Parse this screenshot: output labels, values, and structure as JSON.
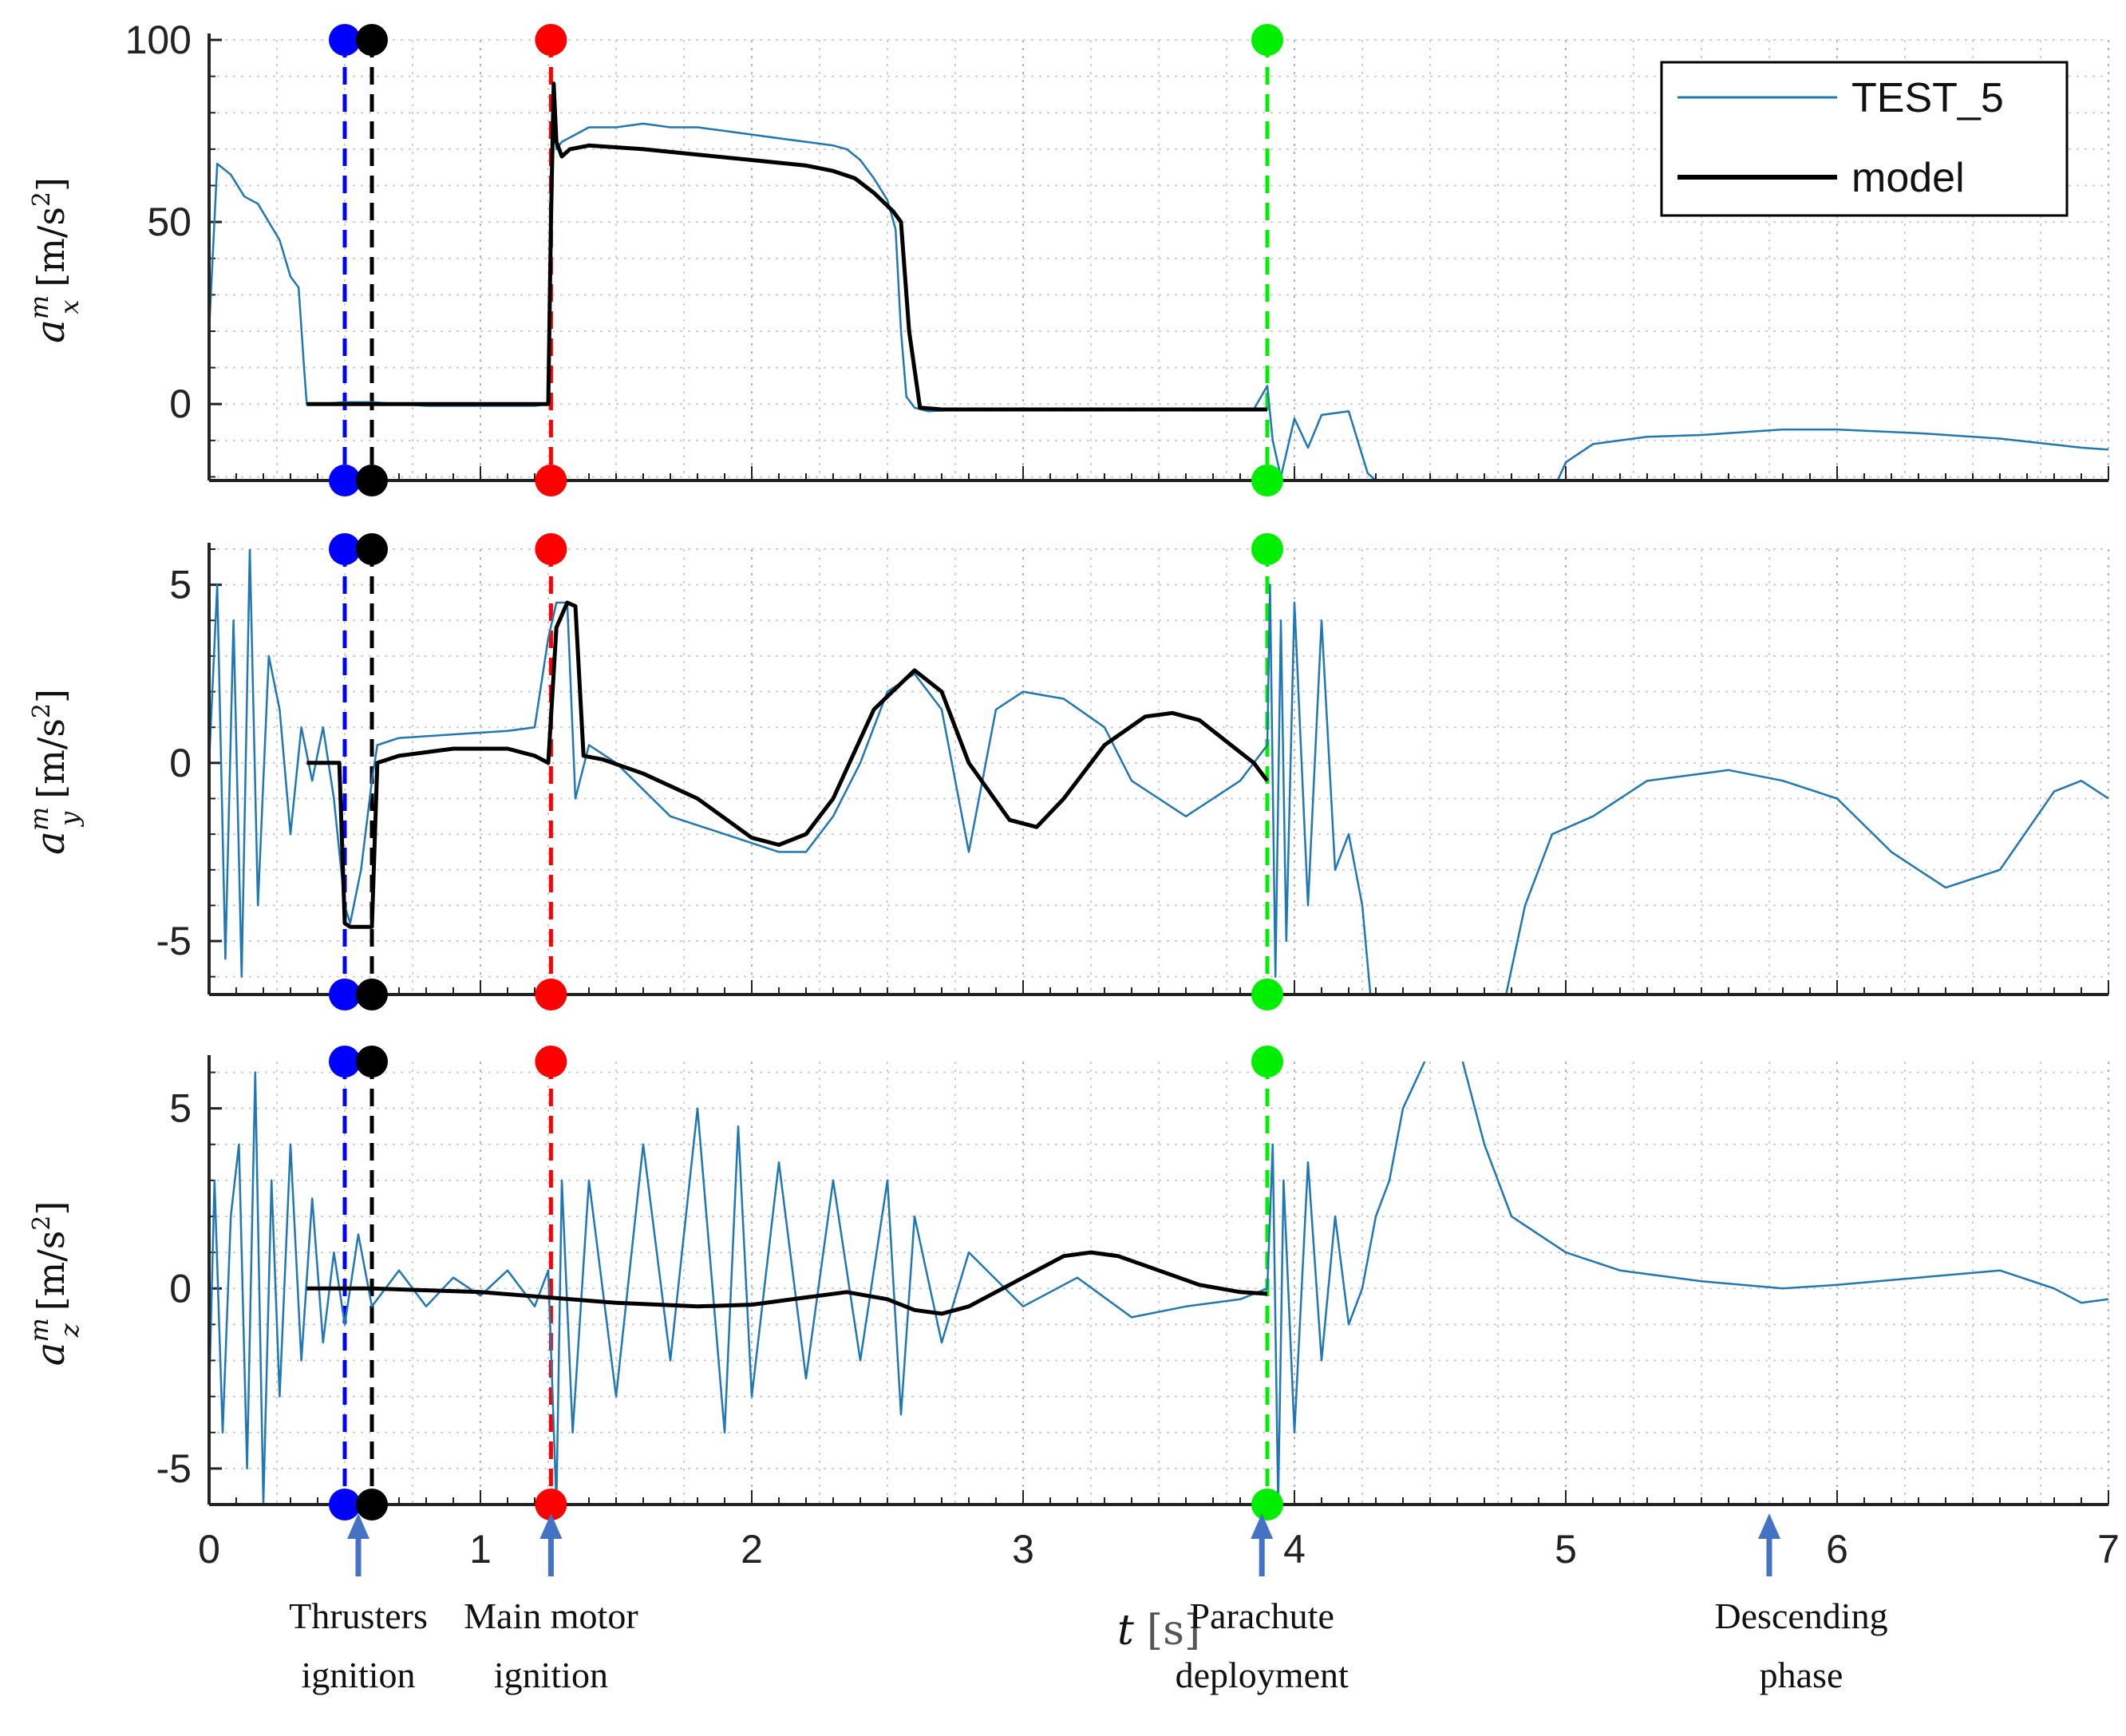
{
  "chart_data": {
    "type": "line",
    "xlim": [
      0,
      7
    ],
    "xticks": [
      0,
      1,
      2,
      3,
      4,
      5,
      6,
      7
    ],
    "xlabel": {
      "symbol": "t",
      "unit": "[s]"
    },
    "colors": {
      "measured": "#1f77b4",
      "model": "#000000",
      "thrusters_first": "#0000ff",
      "thrusters_second": "#000000",
      "main_motor": "#ff0000",
      "parachute": "#00ee00",
      "arrow": "#4472c4"
    },
    "legend": {
      "position": "top-right",
      "entries": [
        "TEST_5",
        "model"
      ]
    },
    "events": [
      {
        "name": "thrusters-1",
        "t": 0.5,
        "color": "#0000ff"
      },
      {
        "name": "thrusters-2",
        "t": 0.6,
        "color": "#000000"
      },
      {
        "name": "main-motor",
        "t": 1.26,
        "color": "#ff0000"
      },
      {
        "name": "parachute",
        "t": 3.9,
        "color": "#00ee00"
      }
    ],
    "annotations": [
      {
        "t": 0.55,
        "lines": [
          "Thrusters",
          "ignition"
        ]
      },
      {
        "t": 1.26,
        "lines": [
          "Main motor",
          "ignition"
        ]
      },
      {
        "t": 3.88,
        "lines": [
          "Parachute",
          "deployment"
        ]
      },
      {
        "t": 5.75,
        "lines": [
          "Descending",
          "phase"
        ]
      }
    ],
    "panels": [
      {
        "id": "ax",
        "ylabel": {
          "symbol": "a",
          "sup": "m",
          "sub": "x",
          "unit": "[m/s",
          "unit_sup": "2",
          "unit_close": "]"
        },
        "ylim": [
          -21,
          100
        ],
        "yticks": [
          0,
          50,
          100
        ],
        "series": [
          {
            "name": "TEST_5",
            "x": [
              0,
              0.03,
              0.08,
              0.13,
              0.18,
              0.22,
              0.26,
              0.3,
              0.33,
              0.35,
              0.36,
              0.4,
              0.5,
              0.6,
              0.8,
              1.0,
              1.2,
              1.25,
              1.26,
              1.27,
              1.28,
              1.3,
              1.35,
              1.4,
              1.5,
              1.6,
              1.7,
              1.8,
              1.9,
              2.0,
              2.1,
              2.2,
              2.3,
              2.35,
              2.4,
              2.45,
              2.5,
              2.53,
              2.55,
              2.57,
              2.6,
              2.65,
              2.8,
              3.2,
              3.6,
              3.85,
              3.9,
              3.92,
              3.95,
              4.0,
              4.05,
              4.1,
              4.2,
              4.27,
              4.3,
              null,
              4.97,
              5.0,
              5.1,
              5.2,
              5.3,
              5.5,
              5.8,
              6.0,
              6.3,
              6.6,
              6.9,
              7.0
            ],
            "y": [
              20,
              66,
              63,
              57,
              55,
              50,
              45,
              35,
              32,
              10,
              0,
              0,
              0.5,
              0.5,
              -0.5,
              -0.5,
              -0.5,
              0,
              40,
              80,
              70,
              72,
              74,
              76,
              76,
              77,
              76,
              76,
              75,
              74,
              73,
              72,
              71,
              70,
              67,
              62,
              56,
              48,
              20,
              2,
              -1,
              -2,
              -1.5,
              -1.5,
              -1.5,
              -1.5,
              5,
              -10,
              -20,
              -4,
              -12,
              -3,
              -2,
              -19,
              -21,
              null,
              -21,
              -16,
              -11,
              -10,
              -9,
              -8.5,
              -7,
              -7,
              -8,
              -9.5,
              -12,
              -12.5
            ]
          },
          {
            "name": "model",
            "x": [
              0.36,
              0.5,
              0.7,
              1.0,
              1.25,
              1.26,
              1.27,
              1.28,
              1.3,
              1.33,
              1.4,
              1.6,
              1.8,
              2.0,
              2.2,
              2.3,
              2.38,
              2.45,
              2.52,
              2.55,
              2.58,
              2.62,
              2.7,
              3.0,
              3.5,
              3.9
            ],
            "y": [
              0,
              0,
              0,
              0,
              0,
              50,
              88,
              72,
              68,
              70,
              71,
              70,
              68.5,
              67,
              65.5,
              64,
              62,
              58,
              53,
              50,
              20,
              -1,
              -1.5,
              -1.5,
              -1.5,
              -1.5
            ]
          }
        ]
      },
      {
        "id": "ay",
        "ylabel": {
          "symbol": "a",
          "sup": "m",
          "sub": "y",
          "unit": "[m/s",
          "unit_sup": "2",
          "unit_close": "]"
        },
        "ylim": [
          -6.5,
          6
        ],
        "yticks": [
          -5,
          0,
          5
        ],
        "series": [
          {
            "name": "TEST_5",
            "x": [
              0,
              0.03,
              0.06,
              0.09,
              0.12,
              0.15,
              0.18,
              0.22,
              0.26,
              0.3,
              0.34,
              0.38,
              0.42,
              0.46,
              0.5,
              0.52,
              0.56,
              0.6,
              0.62,
              0.7,
              0.9,
              1.1,
              1.2,
              1.25,
              1.28,
              1.32,
              1.35,
              1.4,
              1.5,
              1.7,
              1.9,
              2.1,
              2.2,
              2.3,
              2.4,
              2.5,
              2.6,
              2.7,
              2.8,
              2.9,
              3.0,
              3.15,
              3.3,
              3.4,
              3.5,
              3.6,
              3.7,
              3.8,
              3.9,
              3.91,
              3.93,
              3.95,
              3.97,
              4.0,
              4.05,
              4.1,
              4.15,
              4.2,
              4.25,
              4.28,
              4.3,
              null,
              4.78,
              4.85,
              4.95,
              5.1,
              5.3,
              5.6,
              5.8,
              6.0,
              6.2,
              6.4,
              6.6,
              6.8,
              6.9,
              7.0
            ],
            "y": [
              0,
              5,
              -5.5,
              4,
              -6,
              6,
              -4,
              3,
              1.5,
              -2,
              1,
              -0.5,
              1,
              -1,
              -4,
              -4.5,
              -3,
              -0.5,
              0.5,
              0.7,
              0.8,
              0.9,
              1.0,
              3.5,
              4.5,
              4.5,
              -1,
              0.5,
              0,
              -1.5,
              -2,
              -2.5,
              -2.5,
              -1.5,
              0,
              2,
              2.5,
              1.5,
              -2.5,
              1.5,
              2.0,
              1.8,
              1.0,
              -0.5,
              -1.0,
              -1.5,
              -1.0,
              -0.5,
              0.5,
              5,
              -6,
              4,
              -5,
              4.5,
              -4,
              4,
              -3,
              -2,
              -4,
              -6.5,
              -6.5,
              null,
              -6.5,
              -4,
              -2,
              -1.5,
              -0.5,
              -0.2,
              -0.5,
              -1.0,
              -2.5,
              -3.5,
              -3.0,
              -0.8,
              -0.5,
              -1.0
            ]
          },
          {
            "name": "model",
            "x": [
              0.36,
              0.48,
              0.5,
              0.52,
              0.58,
              0.6,
              0.62,
              0.7,
              0.9,
              1.1,
              1.2,
              1.25,
              1.28,
              1.32,
              1.35,
              1.38,
              1.45,
              1.6,
              1.8,
              2.0,
              2.1,
              2.2,
              2.3,
              2.45,
              2.6,
              2.7,
              2.8,
              2.95,
              3.05,
              3.15,
              3.3,
              3.45,
              3.55,
              3.65,
              3.75,
              3.85,
              3.9
            ],
            "y": [
              0,
              0,
              -4.5,
              -4.6,
              -4.6,
              -4.6,
              0,
              0.2,
              0.4,
              0.4,
              0.2,
              0,
              3.8,
              4.5,
              4.4,
              0.2,
              0.1,
              -0.3,
              -1.0,
              -2.1,
              -2.3,
              -2.0,
              -1.0,
              1.5,
              2.6,
              2.0,
              0,
              -1.6,
              -1.8,
              -1.0,
              0.5,
              1.3,
              1.4,
              1.2,
              0.6,
              0,
              -0.5
            ]
          }
        ]
      },
      {
        "id": "az",
        "ylabel": {
          "symbol": "a",
          "sup": "m",
          "sub": "z",
          "unit": "[m/s",
          "unit_sup": "2",
          "unit_close": "]"
        },
        "ylim": [
          -6,
          6.3
        ],
        "yticks": [
          -5,
          0,
          5
        ],
        "series": [
          {
            "name": "TEST_5",
            "x": [
              0,
              0.02,
              0.05,
              0.08,
              0.11,
              0.14,
              0.17,
              0.2,
              0.23,
              0.26,
              0.3,
              0.34,
              0.38,
              0.42,
              0.46,
              0.5,
              0.55,
              0.6,
              0.7,
              0.8,
              0.9,
              1.0,
              1.1,
              1.2,
              1.25,
              1.28,
              1.3,
              1.34,
              1.4,
              1.5,
              1.6,
              1.7,
              1.8,
              1.9,
              1.95,
              2.0,
              2.1,
              2.2,
              2.3,
              2.4,
              2.5,
              2.55,
              2.6,
              2.7,
              2.8,
              3.0,
              3.2,
              3.4,
              3.6,
              3.8,
              3.9,
              3.92,
              3.94,
              3.96,
              4.0,
              4.05,
              4.1,
              4.15,
              4.2,
              4.25,
              4.3,
              4.35,
              4.4,
              4.48,
              null,
              4.62,
              4.7,
              4.8,
              4.9,
              5.0,
              5.2,
              5.5,
              5.8,
              6.0,
              6.3,
              6.6,
              6.8,
              6.9,
              7.0
            ],
            "y": [
              -3,
              3,
              -4,
              2,
              4,
              -5,
              6,
              -6,
              3,
              -3,
              4,
              -2,
              2.5,
              -1.5,
              1,
              -1,
              1.5,
              -0.5,
              0.5,
              -0.5,
              0.3,
              -0.2,
              0.5,
              -0.5,
              0.5,
              -6,
              3,
              -4,
              3,
              -3,
              4,
              -2,
              5,
              -4,
              4.5,
              -3,
              3.5,
              -2.5,
              3,
              -2,
              3,
              -3.5,
              2,
              -1.5,
              1,
              -0.5,
              0.3,
              -0.8,
              -0.5,
              -0.3,
              0,
              4,
              -6,
              3,
              -4,
              3.5,
              -2,
              2,
              -1,
              0,
              2,
              3,
              5,
              6.3,
              null,
              6.3,
              4,
              2,
              1.5,
              1.0,
              0.5,
              0.2,
              0,
              0.1,
              0.3,
              0.5,
              0,
              -0.4,
              -0.3
            ]
          },
          {
            "name": "model",
            "x": [
              0.36,
              0.6,
              1.0,
              1.5,
              1.8,
              2.0,
              2.2,
              2.35,
              2.5,
              2.6,
              2.7,
              2.8,
              3.0,
              3.15,
              3.25,
              3.35,
              3.5,
              3.65,
              3.8,
              3.9
            ],
            "y": [
              0,
              0,
              -0.1,
              -0.4,
              -0.5,
              -0.45,
              -0.25,
              -0.1,
              -0.3,
              -0.6,
              -0.7,
              -0.5,
              0.3,
              0.9,
              1.0,
              0.9,
              0.5,
              0.1,
              -0.1,
              -0.15
            ]
          }
        ]
      }
    ]
  }
}
